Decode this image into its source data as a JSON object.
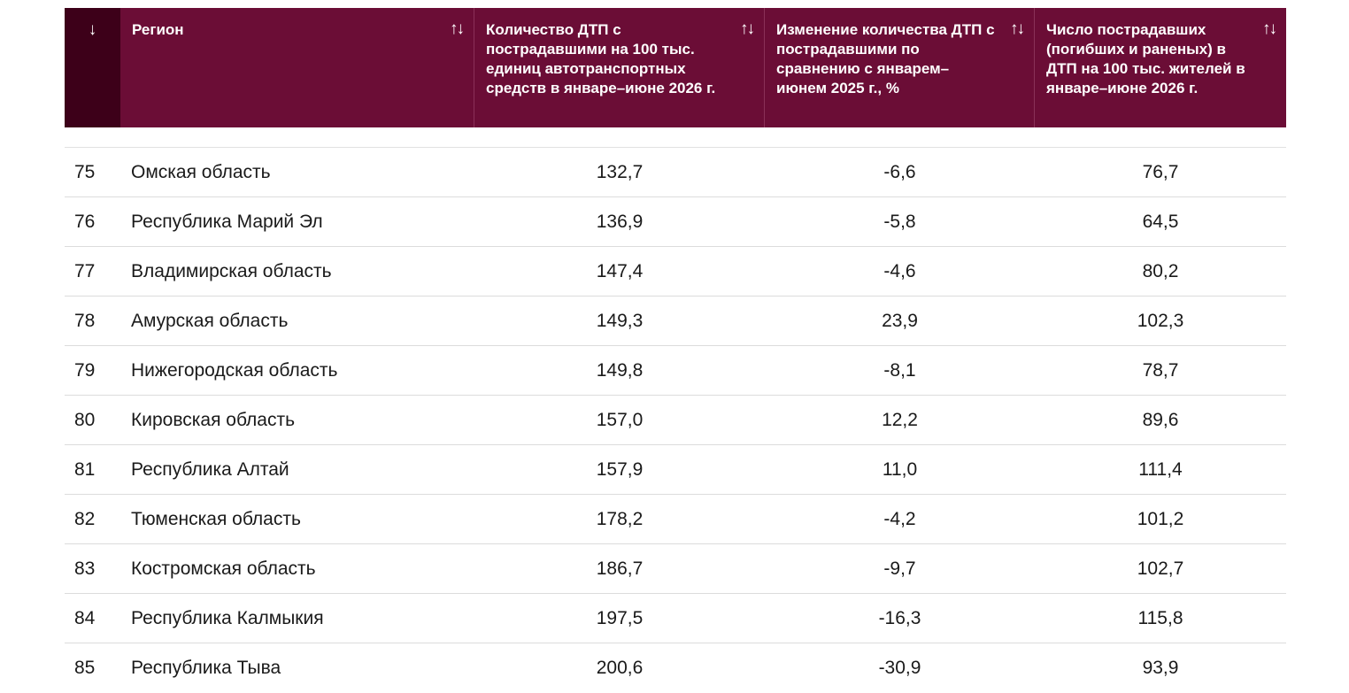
{
  "table": {
    "headers": {
      "rank_sort": "↓",
      "region": "Регион",
      "col_a": "Количество ДТП с пострадавшими на 100 тыс. единиц автотранспортных средств в январе–июне 2026 г.",
      "col_b": "Изменение количества ДТП с пострадавшими по сравнению с январем–июнем 2025 г., %",
      "col_c": "Число пострадавших (погибших и раненых) в ДТП на 100 тыс. жителей в январе–июне 2026 г.",
      "sort_icon": "↑↓"
    },
    "rows": [
      {
        "rank": "75",
        "region": "Омская область",
        "a": "132,7",
        "b": "-6,6",
        "c": "76,7"
      },
      {
        "rank": "76",
        "region": "Республика Марий Эл",
        "a": "136,9",
        "b": "-5,8",
        "c": "64,5"
      },
      {
        "rank": "77",
        "region": "Владимирская область",
        "a": "147,4",
        "b": "-4,6",
        "c": "80,2"
      },
      {
        "rank": "78",
        "region": "Амурская область",
        "a": "149,3",
        "b": "23,9",
        "c": "102,3"
      },
      {
        "rank": "79",
        "region": "Нижегородская область",
        "a": "149,8",
        "b": "-8,1",
        "c": "78,7"
      },
      {
        "rank": "80",
        "region": "Кировская область",
        "a": "157,0",
        "b": "12,2",
        "c": "89,6"
      },
      {
        "rank": "81",
        "region": "Республика Алтай",
        "a": "157,9",
        "b": "11,0",
        "c": "111,4"
      },
      {
        "rank": "82",
        "region": "Тюменская область",
        "a": "178,2",
        "b": "-4,2",
        "c": "101,2"
      },
      {
        "rank": "83",
        "region": "Костромская область",
        "a": "186,7",
        "b": "-9,7",
        "c": "102,7"
      },
      {
        "rank": "84",
        "region": "Республика Калмыкия",
        "a": "197,5",
        "b": "-16,3",
        "c": "115,8"
      },
      {
        "rank": "85",
        "region": "Республика Тыва",
        "a": "200,6",
        "b": "-30,9",
        "c": "93,9"
      }
    ]
  }
}
